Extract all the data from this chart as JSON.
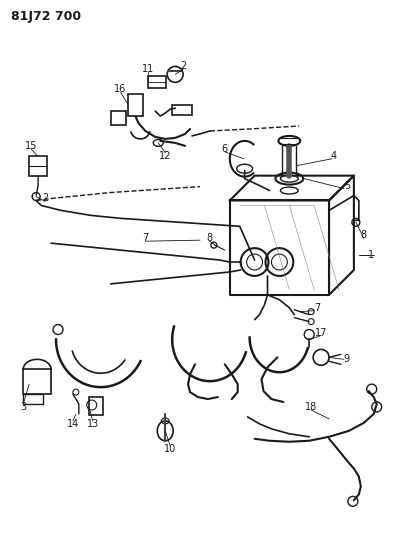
{
  "title": "81J72 700",
  "bg_color": "#ffffff",
  "line_color": "#1a1a1a",
  "fig_width": 3.93,
  "fig_height": 5.33,
  "dpi": 100
}
